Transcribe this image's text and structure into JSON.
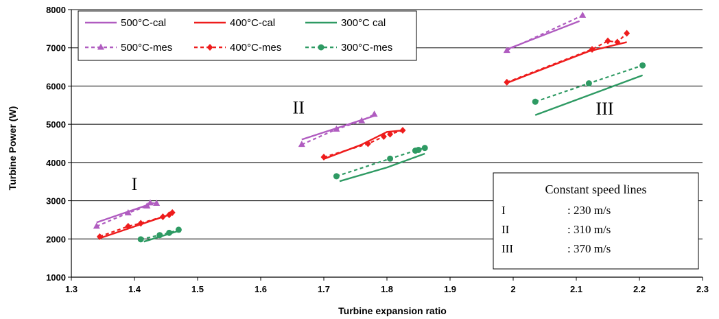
{
  "chart_data": {
    "type": "line",
    "xlabel": "Turbine expansion ratio",
    "ylabel": "Turbine Power (W)",
    "xlim": [
      1.3,
      2.3
    ],
    "ylim": [
      1000,
      8000
    ],
    "x_ticks": [
      "1.3",
      "1.4",
      "1.5",
      "1.6",
      "1.7",
      "1.8",
      "1.9",
      "2",
      "2.1",
      "2.2",
      "2.3"
    ],
    "y_ticks": [
      "1000",
      "2000",
      "3000",
      "4000",
      "5000",
      "6000",
      "7000",
      "8000"
    ],
    "grid": "horizontal",
    "legend_position": "top-left",
    "colors": {
      "500": "#b05cc0",
      "400": "#ee1c1c",
      "300": "#2e9a63"
    },
    "legend": [
      {
        "label": "500°C-cal",
        "color": "#b05cc0",
        "style": "solid",
        "marker": "none"
      },
      {
        "label": "400°C-cal",
        "color": "#ee1c1c",
        "style": "solid",
        "marker": "none"
      },
      {
        "label": "300°C cal",
        "color": "#2e9a63",
        "style": "solid",
        "marker": "none"
      },
      {
        "label": "500°C-mes",
        "color": "#b05cc0",
        "style": "dashed",
        "marker": "triangle"
      },
      {
        "label": "400°C-mes",
        "color": "#ee1c1c",
        "style": "dashed",
        "marker": "diamond"
      },
      {
        "label": "300°C-mes",
        "color": "#2e9a63",
        "style": "dashed",
        "marker": "circle"
      }
    ],
    "series": [
      {
        "name": "500°C-cal",
        "color": "#b05cc0",
        "style": "solid",
        "marker": "none",
        "segments": [
          [
            [
              1.34,
              2430
            ],
            [
              1.43,
              2940
            ]
          ],
          [
            [
              1.665,
              4600
            ],
            [
              1.78,
              5220
            ]
          ],
          [
            [
              1.99,
              6960
            ],
            [
              2.105,
              7700
            ]
          ]
        ]
      },
      {
        "name": "400°C-cal",
        "color": "#ee1c1c",
        "style": "solid",
        "marker": "none",
        "segments": [
          [
            [
              1.345,
              2020
            ],
            [
              1.46,
              2660
            ]
          ],
          [
            [
              1.7,
              4090
            ],
            [
              1.76,
              4470
            ],
            [
              1.8,
              4800
            ],
            [
              1.825,
              4840
            ]
          ],
          [
            [
              1.99,
              6080
            ],
            [
              2.12,
              6910
            ],
            [
              2.18,
              7150
            ]
          ]
        ]
      },
      {
        "name": "300°C cal",
        "color": "#2e9a63",
        "style": "solid",
        "marker": "none",
        "segments": [
          [
            [
              1.415,
              1930
            ],
            [
              1.47,
              2210
            ]
          ],
          [
            [
              1.725,
              3510
            ],
            [
              1.8,
              3870
            ],
            [
              1.86,
              4230
            ]
          ],
          [
            [
              2.035,
              5240
            ],
            [
              2.205,
              6280
            ]
          ]
        ]
      },
      {
        "name": "500°C-mes",
        "color": "#b05cc0",
        "style": "dashed",
        "marker": "triangle",
        "segments": [
          [
            [
              1.34,
              2330
            ],
            [
              1.39,
              2680
            ],
            [
              1.42,
              2860
            ],
            [
              1.425,
              2940
            ],
            [
              1.435,
              2930
            ]
          ],
          [
            [
              1.665,
              4470
            ],
            [
              1.72,
              4870
            ],
            [
              1.76,
              5090
            ],
            [
              1.78,
              5260
            ]
          ],
          [
            [
              1.99,
              6930
            ],
            [
              2.11,
              7850
            ]
          ]
        ]
      },
      {
        "name": "400°C-mes",
        "color": "#ee1c1c",
        "style": "dashed",
        "marker": "diamond",
        "segments": [
          [
            [
              1.345,
              2060
            ],
            [
              1.39,
              2330
            ],
            [
              1.41,
              2410
            ],
            [
              1.445,
              2580
            ],
            [
              1.455,
              2630
            ],
            [
              1.46,
              2690
            ]
          ],
          [
            [
              1.7,
              4140
            ],
            [
              1.77,
              4490
            ],
            [
              1.795,
              4680
            ],
            [
              1.805,
              4740
            ],
            [
              1.825,
              4840
            ]
          ],
          [
            [
              1.99,
              6100
            ],
            [
              2.125,
              6960
            ],
            [
              2.15,
              7180
            ],
            [
              2.165,
              7150
            ],
            [
              2.18,
              7380
            ]
          ]
        ]
      },
      {
        "name": "300°C-mes",
        "color": "#2e9a63",
        "style": "dashed",
        "marker": "circle",
        "segments": [
          [
            [
              1.41,
              1990
            ],
            [
              1.44,
              2100
            ],
            [
              1.455,
              2160
            ],
            [
              1.47,
              2240
            ]
          ],
          [
            [
              1.72,
              3640
            ],
            [
              1.805,
              4100
            ],
            [
              1.845,
              4310
            ],
            [
              1.85,
              4330
            ],
            [
              1.86,
              4380
            ]
          ],
          [
            [
              2.035,
              5590
            ],
            [
              2.12,
              6070
            ],
            [
              2.205,
              6540
            ]
          ]
        ]
      }
    ],
    "group_labels": [
      {
        "text": "I",
        "x": 1.4,
        "y": 3280
      },
      {
        "text": "II",
        "x": 1.66,
        "y": 5280
      },
      {
        "text": "III",
        "x": 2.145,
        "y": 5250
      }
    ],
    "note": {
      "title": "Constant speed lines",
      "rows": [
        {
          "label": "I",
          "value": ": 230 m/s"
        },
        {
          "label": "II",
          "value": ": 310 m/s"
        },
        {
          "label": "III",
          "value": ": 370 m/s"
        }
      ]
    }
  }
}
